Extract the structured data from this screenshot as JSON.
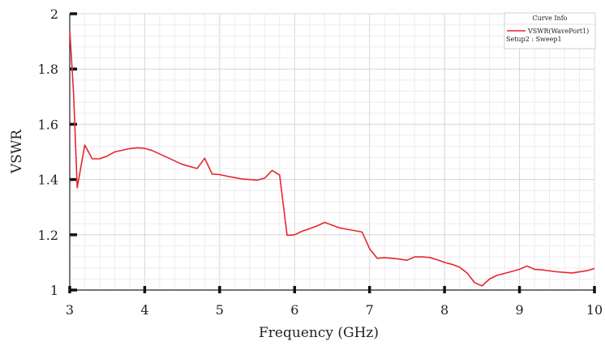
{
  "chart_data": {
    "type": "line",
    "title": "",
    "xlabel": "Frequency (GHz)",
    "ylabel": "VSWR",
    "xlim": [
      3,
      10
    ],
    "ylim": [
      1,
      2
    ],
    "x_ticks": [
      "3",
      "4",
      "5",
      "6",
      "7",
      "8",
      "9",
      "10"
    ],
    "y_ticks": [
      "1",
      "1.2",
      "1.4",
      "1.6",
      "1.8",
      "2"
    ],
    "grid": true,
    "legend": {
      "position": "top-right",
      "title": "Curve Info",
      "entry": "VSWR(WavePort1)",
      "subtitle": "Setup2 : Sweep1"
    },
    "series": [
      {
        "name": "VSWR(WavePort1)",
        "color": "#e8262c",
        "x": [
          3.0,
          3.05,
          3.1,
          3.2,
          3.3,
          3.4,
          3.5,
          3.6,
          3.8,
          3.9,
          4.0,
          4.1,
          4.3,
          4.5,
          4.7,
          4.8,
          4.9,
          5.0,
          5.1,
          5.2,
          5.3,
          5.5,
          5.6,
          5.7,
          5.8,
          5.9,
          6.0,
          6.1,
          6.2,
          6.3,
          6.4,
          6.5,
          6.6,
          6.7,
          6.9,
          7.0,
          7.1,
          7.2,
          7.3,
          7.4,
          7.5,
          7.6,
          7.7,
          7.8,
          7.9,
          8.0,
          8.1,
          8.2,
          8.3,
          8.4,
          8.5,
          8.6,
          8.7,
          8.8,
          9.0,
          9.1,
          9.2,
          9.3,
          9.5,
          9.7,
          9.9,
          10.0
        ],
        "y": [
          1.94,
          1.72,
          1.37,
          1.525,
          1.475,
          1.475,
          1.485,
          1.5,
          1.512,
          1.515,
          1.513,
          1.505,
          1.48,
          1.455,
          1.44,
          1.477,
          1.42,
          1.418,
          1.412,
          1.407,
          1.402,
          1.398,
          1.405,
          1.433,
          1.416,
          1.198,
          1.2,
          1.213,
          1.222,
          1.232,
          1.245,
          1.235,
          1.225,
          1.22,
          1.21,
          1.15,
          1.115,
          1.117,
          1.115,
          1.112,
          1.108,
          1.12,
          1.12,
          1.118,
          1.11,
          1.1,
          1.093,
          1.083,
          1.062,
          1.027,
          1.015,
          1.04,
          1.053,
          1.06,
          1.075,
          1.087,
          1.075,
          1.073,
          1.066,
          1.062,
          1.07,
          1.078
        ]
      }
    ]
  }
}
